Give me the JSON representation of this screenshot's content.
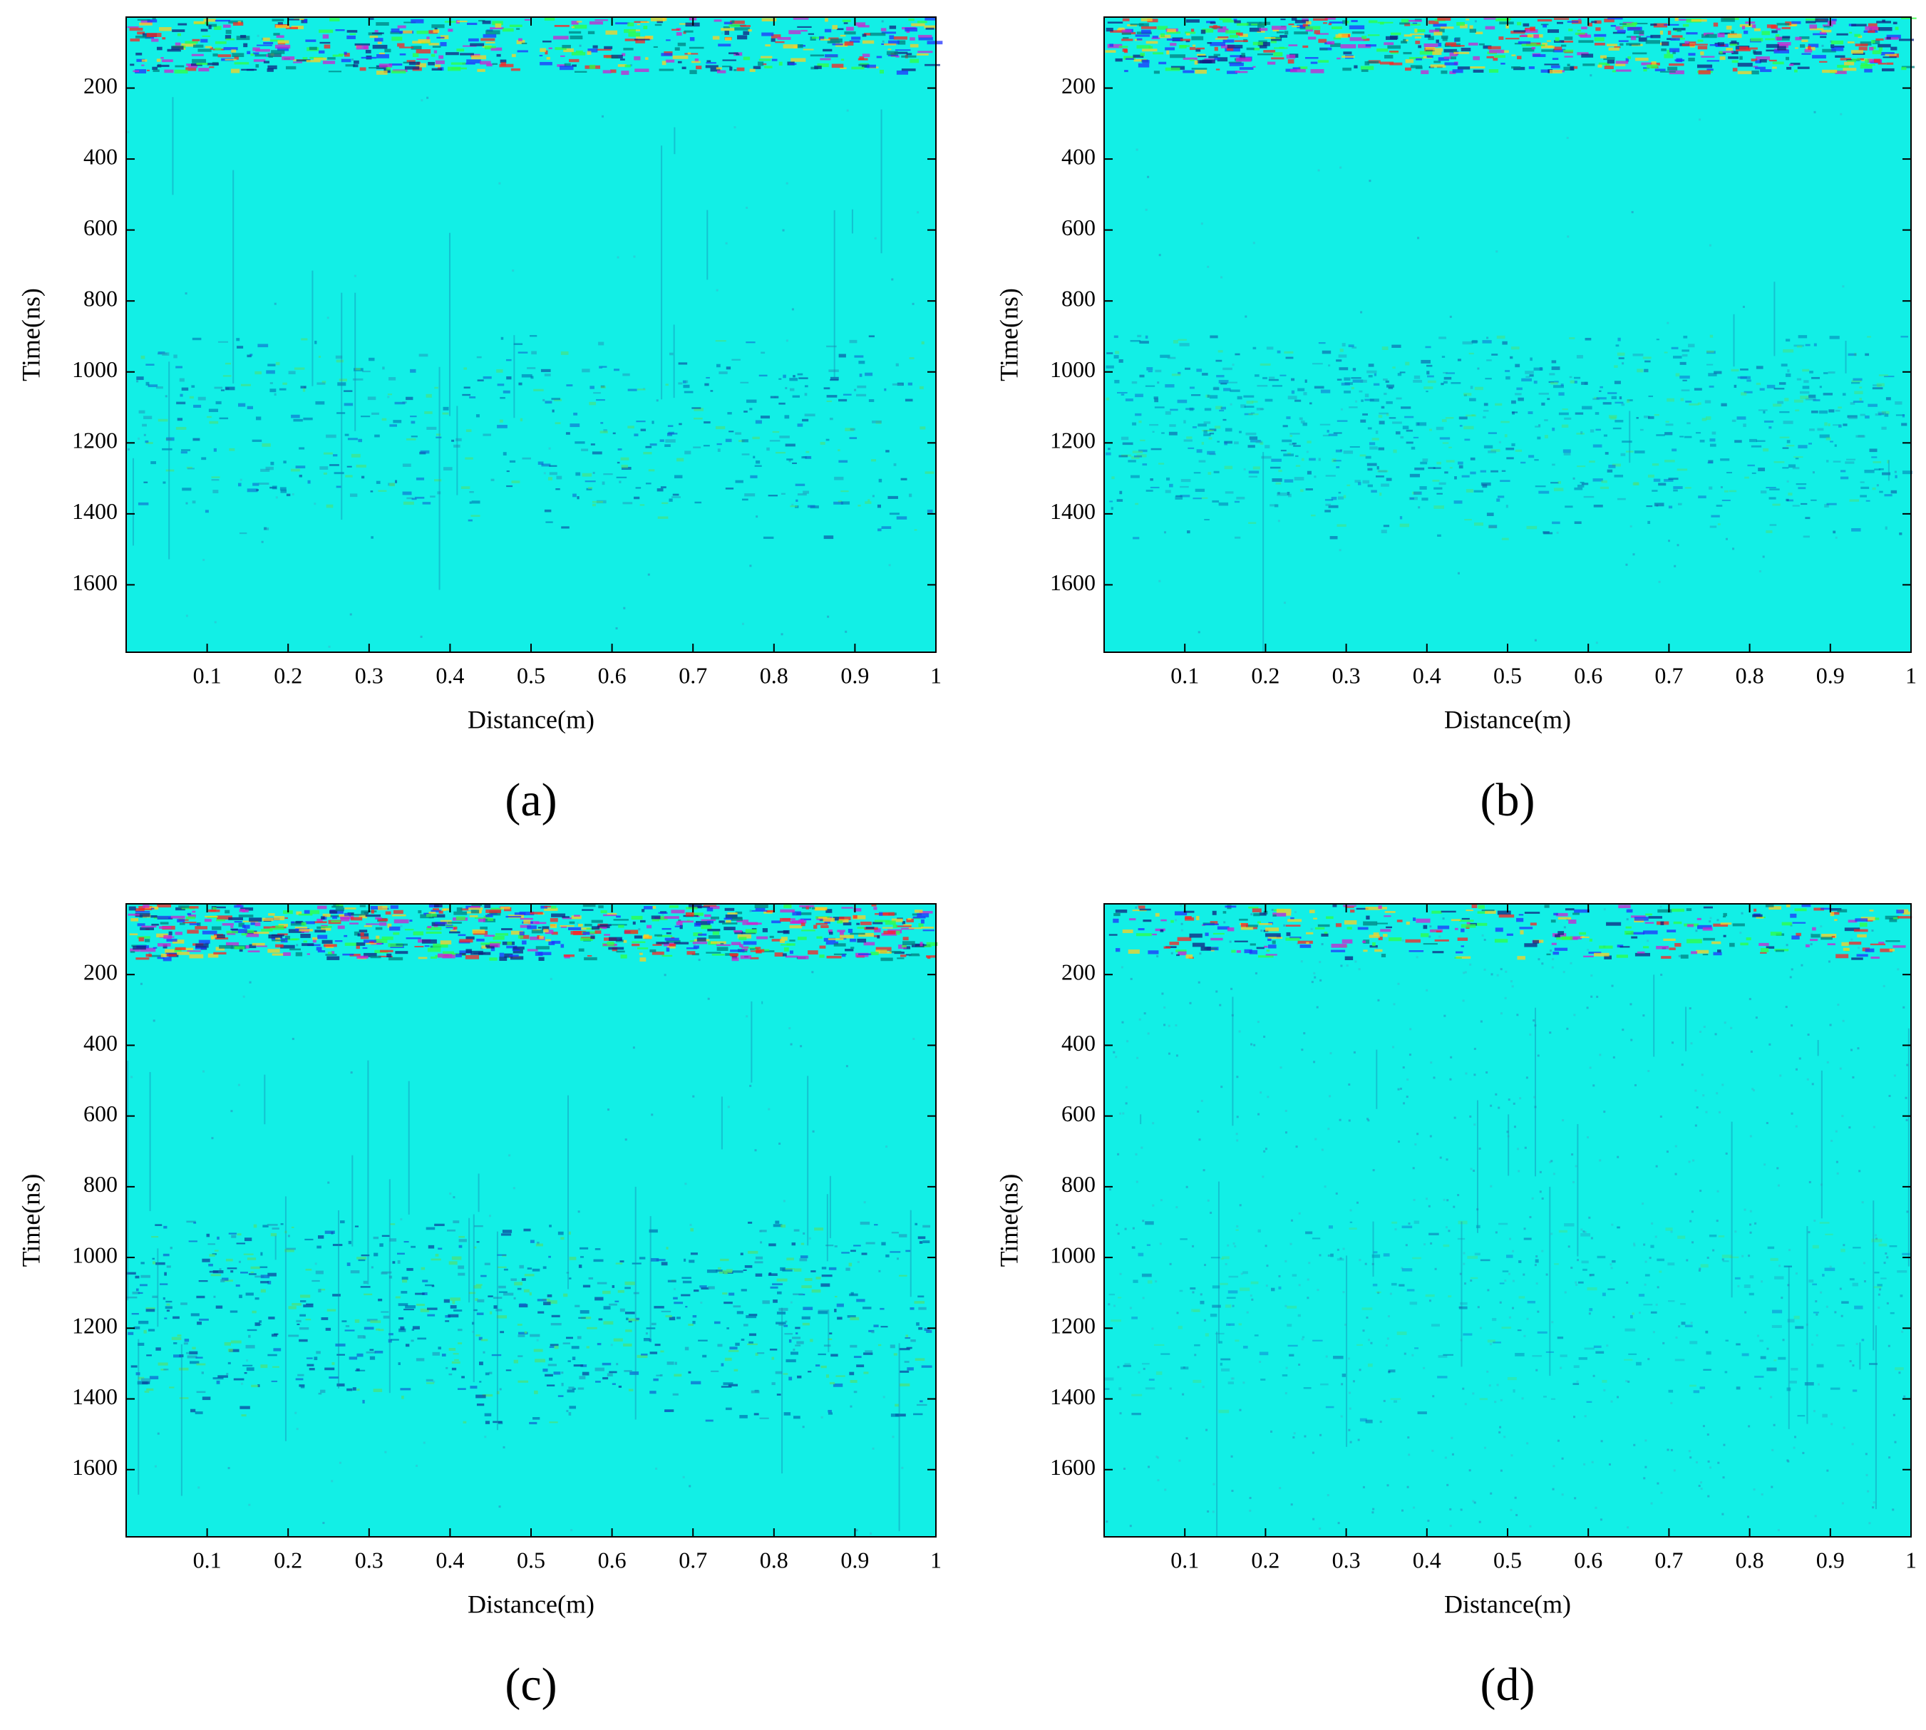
{
  "chart_data": [
    {
      "type": "heatmap",
      "caption": "(a)",
      "xlabel": "Distance(m)",
      "ylabel": "Time(ns)",
      "xlim": [
        0,
        1
      ],
      "ylim": [
        0,
        1790
      ],
      "y_reversed": true,
      "xticks": [
        0.1,
        0.2,
        0.3,
        0.4,
        0.5,
        0.6,
        0.7,
        0.8,
        0.9,
        1
      ],
      "yticks": [
        200,
        400,
        600,
        800,
        1000,
        1200,
        1400,
        1600
      ]
    },
    {
      "type": "heatmap",
      "caption": "(b)",
      "xlabel": "Distance(m)",
      "ylabel": "Time(ns)",
      "xlim": [
        0,
        1
      ],
      "ylim": [
        0,
        1790
      ],
      "y_reversed": true,
      "xticks": [
        0.1,
        0.2,
        0.3,
        0.4,
        0.5,
        0.6,
        0.7,
        0.8,
        0.9,
        1
      ],
      "yticks": [
        200,
        400,
        600,
        800,
        1000,
        1200,
        1400,
        1600
      ]
    },
    {
      "type": "heatmap",
      "caption": "(c)",
      "xlabel": "Distance(m)",
      "ylabel": "Time(ns)",
      "xlim": [
        0,
        1
      ],
      "ylim": [
        0,
        1790
      ],
      "y_reversed": true,
      "xticks": [
        0.1,
        0.2,
        0.3,
        0.4,
        0.5,
        0.6,
        0.7,
        0.8,
        0.9,
        1
      ],
      "yticks": [
        200,
        400,
        600,
        800,
        1000,
        1200,
        1400,
        1600
      ]
    },
    {
      "type": "heatmap",
      "caption": "(d)",
      "xlabel": "Distance(m)",
      "ylabel": "Time(ns)",
      "xlim": [
        0,
        1
      ],
      "ylim": [
        0,
        1790
      ],
      "y_reversed": true,
      "xticks": [
        0.1,
        0.2,
        0.3,
        0.4,
        0.5,
        0.6,
        0.7,
        0.8,
        0.9,
        1
      ],
      "yticks": [
        200,
        400,
        600,
        800,
        1000,
        1200,
        1400,
        1600
      ]
    }
  ]
}
